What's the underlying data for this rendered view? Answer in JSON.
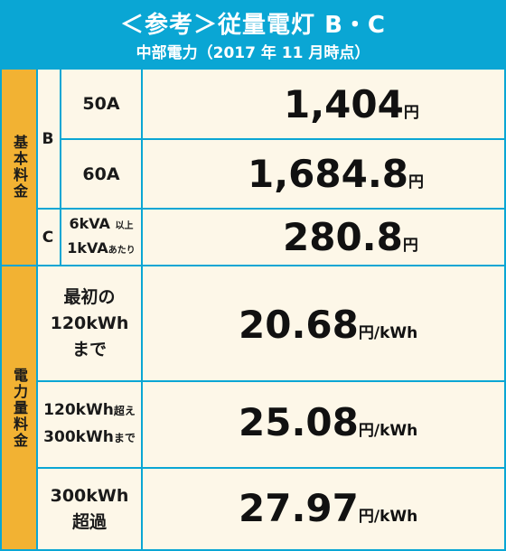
{
  "header": {
    "title": "＜参考＞従量電灯 B・C",
    "subtitle": "中部電力（2017 年 11 月時点）"
  },
  "basic": {
    "category": "基本料金",
    "group_b": "B",
    "group_c": "C",
    "rows": [
      {
        "label": "50A",
        "price": "1,404",
        "unit": "円"
      },
      {
        "label": "60A",
        "price": "1,684.8",
        "unit": "円"
      },
      {
        "label_line1": "6kVA",
        "label_line1_small": "以上",
        "label_line2": "1kVA",
        "label_line2_small": "あたり",
        "price": "280.8",
        "unit": "円"
      }
    ]
  },
  "usage": {
    "category": "電力量料金",
    "rows": [
      {
        "line1": "最初の",
        "line2": "120kWh",
        "line3": "まで",
        "price": "20.68",
        "unit": "円/kWh"
      },
      {
        "line1": "120kWh",
        "line1_small": "超え",
        "line2": "300kWh",
        "line2_small": "まで",
        "price": "25.08",
        "unit": "円/kWh"
      },
      {
        "line1": "300kWh",
        "line2": "超過",
        "price": "27.97",
        "unit": "円/kWh"
      }
    ]
  },
  "colors": {
    "header": "#0aa6d4",
    "category": "#f2b233",
    "background": "#fdf7e8",
    "border": "#0aa6d4"
  }
}
